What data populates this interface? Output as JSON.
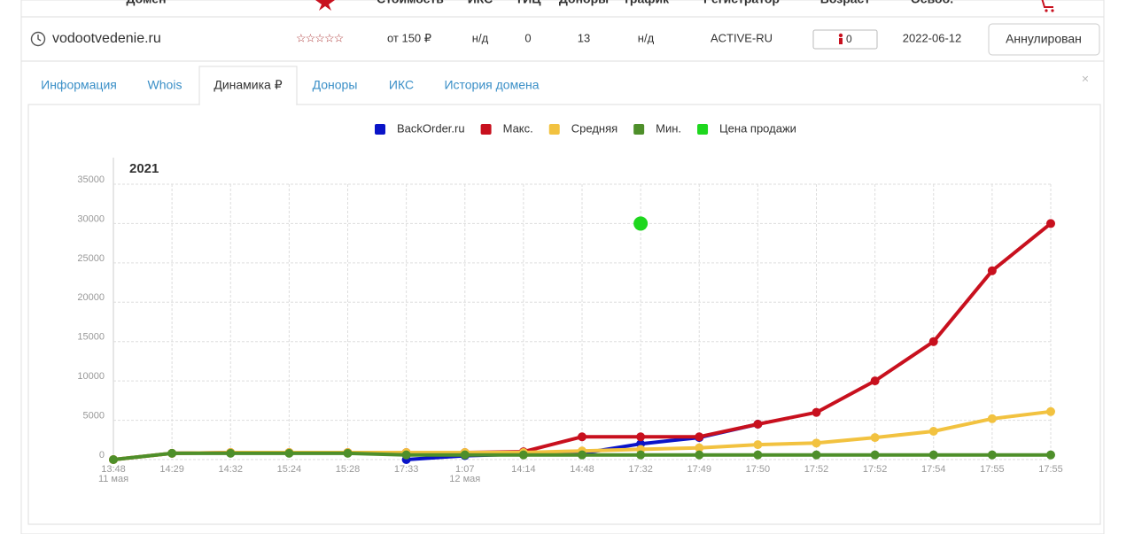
{
  "header": {
    "columns": [
      "Домен",
      "Стоимость",
      "ИКС",
      "ТИЦ",
      "Доноры",
      "Трафик",
      "Регистратор",
      "Возраст",
      "Освоб."
    ]
  },
  "row": {
    "domain": "vodootvedenie.ru",
    "price": "от 150 ₽",
    "iks": "н/д",
    "tic": "0",
    "donors": "13",
    "traffic": "н/д",
    "registrar": "ACTIVE-RU",
    "age": "0",
    "release": "2022-06-12",
    "status": "Аннулирован"
  },
  "tabs": [
    "Информация",
    "Whois",
    "Динамика ₽",
    "Доноры",
    "ИКС",
    "История домена"
  ],
  "active_tab": 2,
  "chart_data": {
    "type": "line",
    "year_label": "2021",
    "categories": [
      "13:48",
      "14:29",
      "14:32",
      "15:24",
      "15:28",
      "17:33",
      "1:07",
      "14:14",
      "14:48",
      "17:32",
      "17:49",
      "17:50",
      "17:52",
      "17:52",
      "17:54",
      "17:55",
      "17:55"
    ],
    "category_sublabels": [
      "11 мая",
      null,
      null,
      null,
      null,
      null,
      "12 мая",
      null,
      null,
      null,
      null,
      null,
      null,
      null,
      null,
      null,
      null
    ],
    "ylim": [
      0,
      35000
    ],
    "yticks": [
      0,
      5000,
      10000,
      15000,
      20000,
      25000,
      30000,
      35000
    ],
    "grid": true,
    "series": [
      {
        "name": "BackOrder.ru",
        "color": "#0a14c8",
        "values": [
          null,
          null,
          null,
          null,
          null,
          0,
          500,
          700,
          800,
          2000,
          2800,
          4500,
          null,
          null,
          null,
          null,
          null
        ]
      },
      {
        "name": "Макс.",
        "color": "#c8101e",
        "values": [
          0,
          800,
          900,
          900,
          900,
          900,
          900,
          1000,
          2900,
          2900,
          2900,
          4500,
          6000,
          10000,
          15000,
          24000,
          30000
        ]
      },
      {
        "name": "Средняя",
        "color": "#f2c240",
        "values": [
          0,
          800,
          900,
          900,
          900,
          900,
          900,
          900,
          1100,
          1300,
          1500,
          1900,
          2100,
          2800,
          3600,
          5200,
          6100
        ]
      },
      {
        "name": "Мин.",
        "color": "#4e8f2a",
        "values": [
          0,
          800,
          800,
          800,
          800,
          600,
          600,
          600,
          600,
          600,
          600,
          600,
          600,
          600,
          600,
          600,
          600
        ]
      },
      {
        "name": "Цена продажи",
        "color": "#1ed71e",
        "values": [
          null,
          null,
          null,
          null,
          null,
          null,
          null,
          null,
          null,
          30000,
          null,
          null,
          null,
          null,
          null,
          null,
          null
        ]
      }
    ]
  }
}
